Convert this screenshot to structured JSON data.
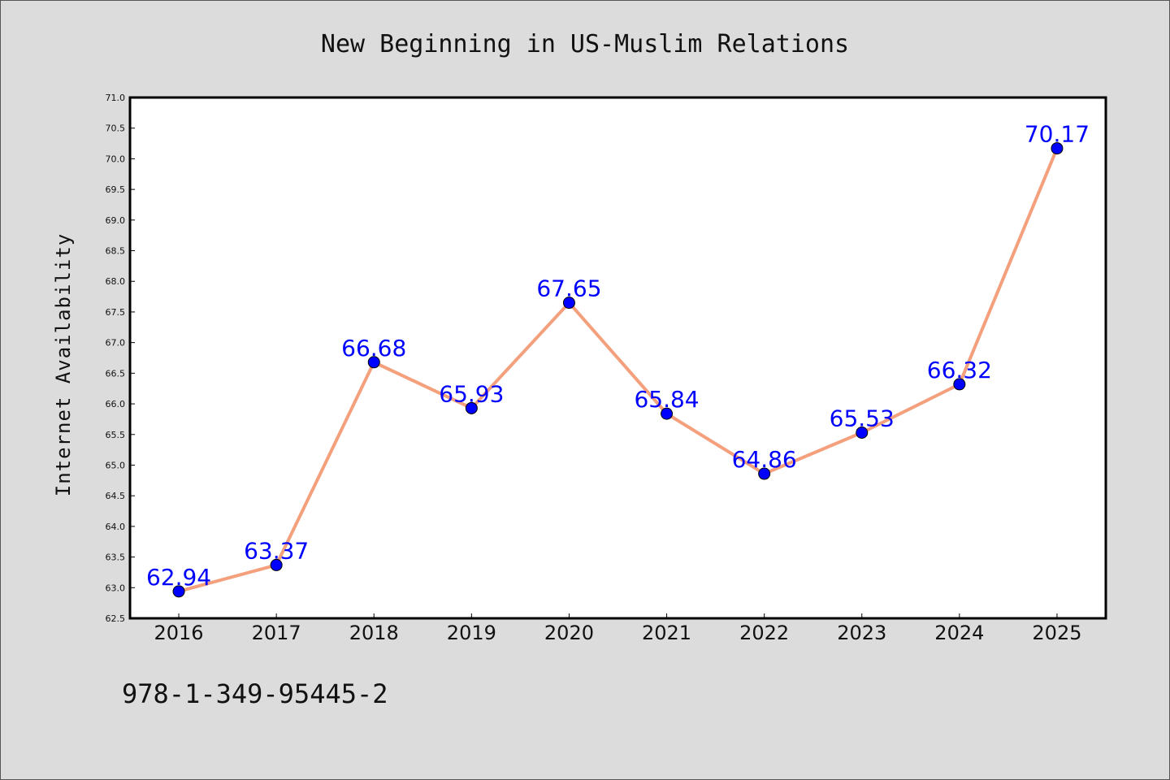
{
  "chart_data": {
    "type": "line",
    "title": "New Beginning in US-Muslim Relations",
    "ylabel": "Internet Availability",
    "xlabel": "",
    "categories": [
      "2016",
      "2017",
      "2018",
      "2019",
      "2020",
      "2021",
      "2022",
      "2023",
      "2024",
      "2025"
    ],
    "series": [
      {
        "values": [
          62.94,
          63.37,
          66.68,
          65.93,
          67.65,
          65.84,
          64.86,
          65.53,
          66.32,
          70.17
        ],
        "labels": [
          "62.94",
          "63.37",
          "66.68",
          "65.93",
          "67.65",
          "65.84",
          "64.86",
          "65.53",
          "66.32",
          "70.17"
        ]
      }
    ],
    "ylim": [
      62.5,
      71.0
    ],
    "yticks": [
      "62.5",
      "63.0",
      "63.5",
      "64.0",
      "64.5",
      "65.0",
      "65.5",
      "66.0",
      "66.5",
      "67.0",
      "67.5",
      "68.0",
      "68.5",
      "69.0",
      "69.5",
      "70.0",
      "70.5",
      "71.0"
    ],
    "grid": false,
    "line_color": "#f4a07c",
    "marker_color": "#0000ff",
    "label_color": "#0000ff"
  },
  "footnote": "978-1-349-95445-2"
}
